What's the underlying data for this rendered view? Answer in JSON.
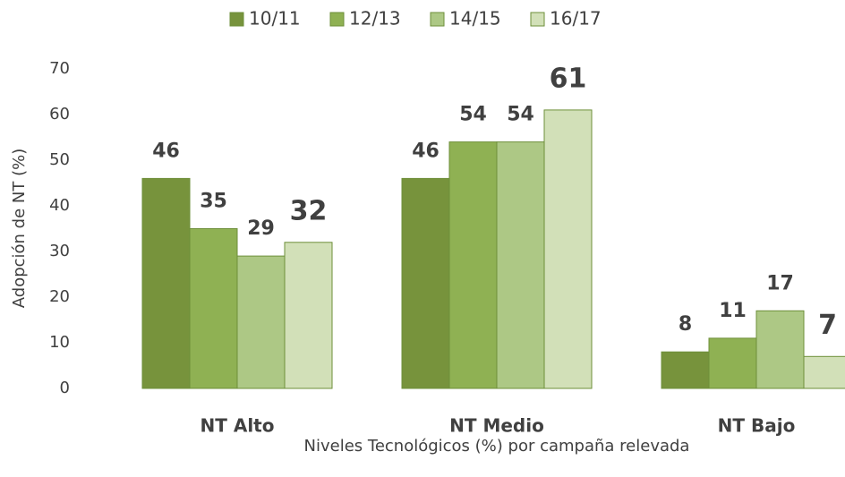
{
  "chart_data": {
    "type": "bar",
    "categories": [
      "NT Alto",
      "NT Medio",
      "NT Bajo"
    ],
    "series": [
      {
        "name": "10/11",
        "color": "#77933c",
        "values": [
          46,
          46,
          8
        ]
      },
      {
        "name": "12/13",
        "color": "#8fb153",
        "values": [
          35,
          54,
          11
        ]
      },
      {
        "name": "14/15",
        "color": "#adc885",
        "values": [
          29,
          54,
          17
        ]
      },
      {
        "name": "16/17",
        "color": "#d2e0b8",
        "values": [
          32,
          61,
          7
        ]
      }
    ],
    "ylabel": "Adopción de NT (%)",
    "xlabel": "Niveles Tecnológicos  (%) por campaña relevada",
    "ylim": [
      0,
      70
    ],
    "yticks": [
      0,
      10,
      20,
      30,
      40,
      50,
      60,
      70
    ],
    "legend": "top",
    "grid": false
  }
}
